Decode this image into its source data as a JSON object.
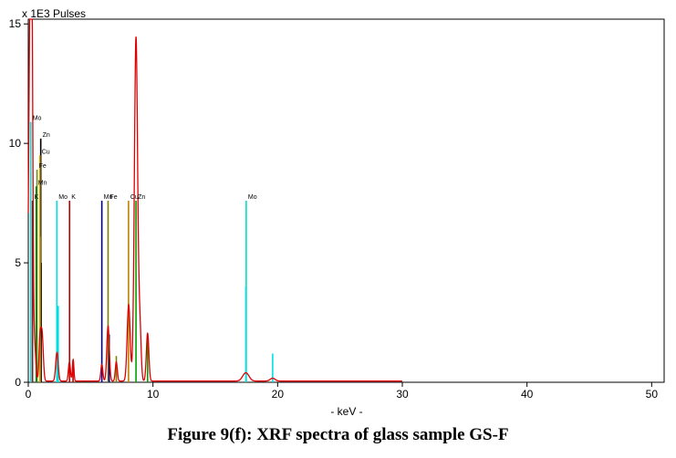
{
  "caption": "Figure 9(f): XRF spectra of glass sample GS-F",
  "chart_data": {
    "type": "line",
    "title": "",
    "xlabel": "- keV -",
    "ylabel": "x 1E3 Pulses",
    "xlim": [
      0,
      51
    ],
    "ylim": [
      0,
      15.2
    ],
    "xticks": [
      0,
      10,
      20,
      30,
      40,
      50
    ],
    "yticks": [
      0,
      5,
      10,
      15
    ],
    "grid": false,
    "spectrum": {
      "name": "",
      "color": "#e00000",
      "peaks": [
        {
          "e": 0.15,
          "h": 15.3,
          "w": 0.12
        },
        {
          "e": 0.28,
          "h": 11.5,
          "w": 0.08
        },
        {
          "e": 0.5,
          "h": 1.5,
          "w": 0.1
        },
        {
          "e": 0.93,
          "h": 1.5,
          "w": 0.08
        },
        {
          "e": 1.1,
          "h": 2.0,
          "w": 0.1
        },
        {
          "e": 2.3,
          "h": 1.2,
          "w": 0.1
        },
        {
          "e": 3.3,
          "h": 0.8,
          "w": 0.08
        },
        {
          "e": 3.6,
          "h": 0.9,
          "w": 0.06
        },
        {
          "e": 5.9,
          "h": 0.7,
          "w": 0.08
        },
        {
          "e": 6.4,
          "h": 2.3,
          "w": 0.1
        },
        {
          "e": 7.06,
          "h": 0.8,
          "w": 0.08
        },
        {
          "e": 8.05,
          "h": 3.2,
          "w": 0.12
        },
        {
          "e": 8.64,
          "h": 14.4,
          "w": 0.13
        },
        {
          "e": 8.95,
          "h": 2.2,
          "w": 0.1
        },
        {
          "e": 9.57,
          "h": 2.0,
          "w": 0.1
        },
        {
          "e": 17.45,
          "h": 0.35,
          "w": 0.25
        },
        {
          "e": 19.6,
          "h": 0.12,
          "w": 0.2
        }
      ],
      "background": 0.05
    },
    "element_lines": [
      {
        "element": "Mo",
        "energy": 0.2,
        "height": 10.9,
        "color": "#00e0e0",
        "show_label": true
      },
      {
        "element": "Zn",
        "energy": 1.0,
        "height": 10.2,
        "color": "#000000",
        "show_label": true
      },
      {
        "element": "Cu",
        "energy": 0.93,
        "height": 9.5,
        "color": "#d4a000",
        "show_label": true
      },
      {
        "element": "Fe",
        "energy": 0.7,
        "height": 8.9,
        "color": "#6b8e23",
        "show_label": true
      },
      {
        "element": "Mn",
        "energy": 0.64,
        "height": 8.2,
        "color": "#008000",
        "show_label": true
      },
      {
        "element": "K",
        "energy": 0.34,
        "height": 7.6,
        "color": "#7a2020",
        "show_label": true
      },
      {
        "element": "Mo",
        "energy": 2.29,
        "height": 7.6,
        "color": "#00e0e0",
        "show_label": true
      },
      {
        "element": "K",
        "energy": 3.31,
        "height": 7.6,
        "color": "#c00000",
        "show_label": true
      },
      {
        "element": "Mn",
        "energy": 5.9,
        "height": 7.6,
        "color": "#0000a0",
        "show_label": true
      },
      {
        "element": "Fe",
        "energy": 6.4,
        "height": 7.6,
        "color": "#808000",
        "show_label": true
      },
      {
        "element": "Cu",
        "energy": 8.04,
        "height": 7.6,
        "color": "#c08000",
        "show_label": true
      },
      {
        "element": "Zn",
        "energy": 8.64,
        "height": 7.6,
        "color": "#00a000",
        "show_label": true
      },
      {
        "element": "Mo",
        "energy": 17.48,
        "height": 7.6,
        "color": "#00e0c0",
        "show_label": true
      },
      {
        "element": "Mo",
        "energy": 19.6,
        "height": 1.2,
        "color": "#00e0e0",
        "show_label": false
      },
      {
        "element": "Mo",
        "energy": 17.45,
        "height": 4.0,
        "color": "#00e0e0",
        "show_label": false
      },
      {
        "element": "Mo",
        "energy": 2.4,
        "height": 3.2,
        "color": "#00e0e0",
        "show_label": false
      },
      {
        "element": "Zn",
        "energy": 9.57,
        "height": 1.8,
        "color": "#00a000",
        "show_label": false
      },
      {
        "element": "Fe",
        "energy": 7.06,
        "height": 1.1,
        "color": "#808000",
        "show_label": false
      },
      {
        "element": "Mn",
        "energy": 6.49,
        "height": 2.0,
        "color": "#0000a0",
        "show_label": false
      },
      {
        "element": "K",
        "energy": 3.59,
        "height": 0.9,
        "color": "#c00000",
        "show_label": false
      },
      {
        "element": "Zn",
        "energy": 1.03,
        "height": 5.0,
        "color": "#000000",
        "show_label": false
      },
      {
        "element": "Cu",
        "energy": 0.95,
        "height": 6.1,
        "color": "#d4a000",
        "show_label": false
      }
    ]
  }
}
